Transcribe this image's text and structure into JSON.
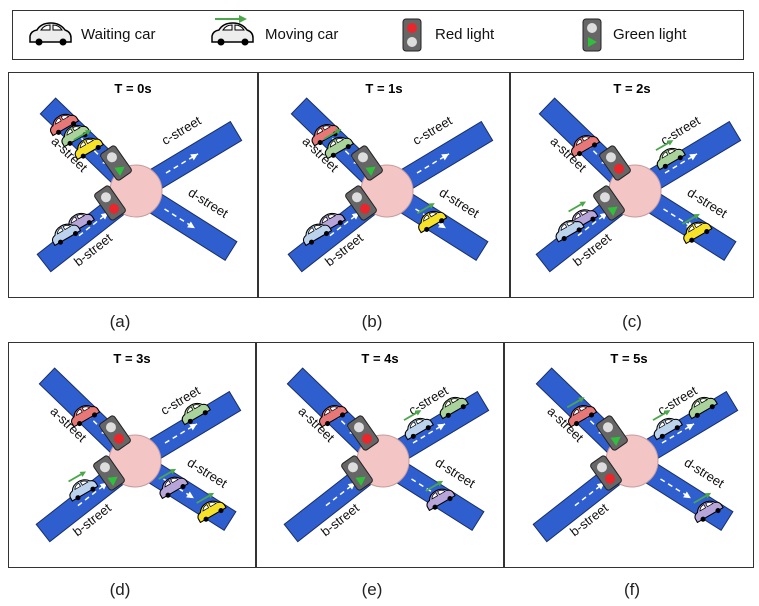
{
  "legend": {
    "waiting_car": "Waiting car",
    "moving_car": "Moving car",
    "red_light": "Red light",
    "green_light": "Green light"
  },
  "streets": {
    "a": "a-street",
    "b": "b-street",
    "c": "c-street",
    "d": "d-street"
  },
  "colors": {
    "road": "#2f5fcf",
    "junction": "#f4c5c5",
    "arrow": "#4aa84a",
    "red_signal": "#e8262b",
    "green_signal": "#2fbf3a",
    "car_red": "#e87878",
    "car_green": "#a9d39b",
    "car_yellow": "#f7e22a",
    "car_purple": "#b7a4d8",
    "car_blue": "#bcd3ee",
    "car_white": "#ededed"
  },
  "panels": [
    {
      "title": "T = 0s",
      "caption": "(a)",
      "signal_a": "green",
      "signal_b": "red",
      "cars": [
        {
          "c": "red",
          "s": "a",
          "t": 0.7,
          "m": false
        },
        {
          "c": "green",
          "s": "a",
          "t": 0.57,
          "m": false
        },
        {
          "c": "yellow",
          "s": "a",
          "t": 0.42,
          "m": true
        },
        {
          "c": "purple",
          "s": "b",
          "t": 0.5,
          "m": false
        },
        {
          "c": "blue",
          "s": "b",
          "t": 0.65,
          "m": false
        }
      ]
    },
    {
      "title": "T = 1s",
      "caption": "(b)",
      "signal_a": "green",
      "signal_b": "red",
      "cars": [
        {
          "c": "red",
          "s": "a",
          "t": 0.58,
          "m": false
        },
        {
          "c": "green",
          "s": "a",
          "t": 0.43,
          "m": true
        },
        {
          "c": "yellow",
          "s": "d",
          "t": 0.42,
          "m": true
        },
        {
          "c": "purple",
          "s": "b",
          "t": 0.5,
          "m": false
        },
        {
          "c": "blue",
          "s": "b",
          "t": 0.65,
          "m": false
        }
      ]
    },
    {
      "title": "T = 2s",
      "caption": "(c)",
      "signal_a": "red",
      "signal_b": "green",
      "cars": [
        {
          "c": "red",
          "s": "a",
          "t": 0.45,
          "m": false
        },
        {
          "c": "green",
          "s": "c",
          "t": 0.3,
          "m": true
        },
        {
          "c": "yellow",
          "s": "d",
          "t": 0.6,
          "m": true
        },
        {
          "c": "purple",
          "s": "b",
          "t": 0.45,
          "m": true
        },
        {
          "c": "blue",
          "s": "b",
          "t": 0.6,
          "m": false
        }
      ]
    },
    {
      "title": "T = 3s",
      "caption": "(d)",
      "signal_a": "red",
      "signal_b": "green",
      "cars": [
        {
          "c": "red",
          "s": "a",
          "t": 0.45,
          "m": false
        },
        {
          "c": "green",
          "s": "c",
          "t": 0.55,
          "m": false
        },
        {
          "c": "purple",
          "s": "d",
          "t": 0.35,
          "m": true
        },
        {
          "c": "yellow",
          "s": "d",
          "t": 0.75,
          "m": true
        },
        {
          "c": "blue",
          "s": "b",
          "t": 0.45,
          "m": true
        }
      ]
    },
    {
      "title": "T = 4s",
      "caption": "(e)",
      "signal_a": "red",
      "signal_b": "green",
      "cars": [
        {
          "c": "red",
          "s": "a",
          "t": 0.45,
          "m": false
        },
        {
          "c": "blue",
          "s": "c",
          "t": 0.3,
          "m": true
        },
        {
          "c": "green",
          "s": "c",
          "t": 0.65,
          "m": false
        },
        {
          "c": "purple",
          "s": "d",
          "t": 0.55,
          "m": true
        }
      ]
    },
    {
      "title": "T = 5s",
      "caption": "(f)",
      "signal_a": "green",
      "signal_b": "red",
      "cars": [
        {
          "c": "red",
          "s": "a",
          "t": 0.45,
          "m": true
        },
        {
          "c": "blue",
          "s": "c",
          "t": 0.3,
          "m": true
        },
        {
          "c": "green",
          "s": "c",
          "t": 0.65,
          "m": false
        },
        {
          "c": "purple",
          "s": "d",
          "t": 0.75,
          "m": true
        }
      ]
    }
  ]
}
